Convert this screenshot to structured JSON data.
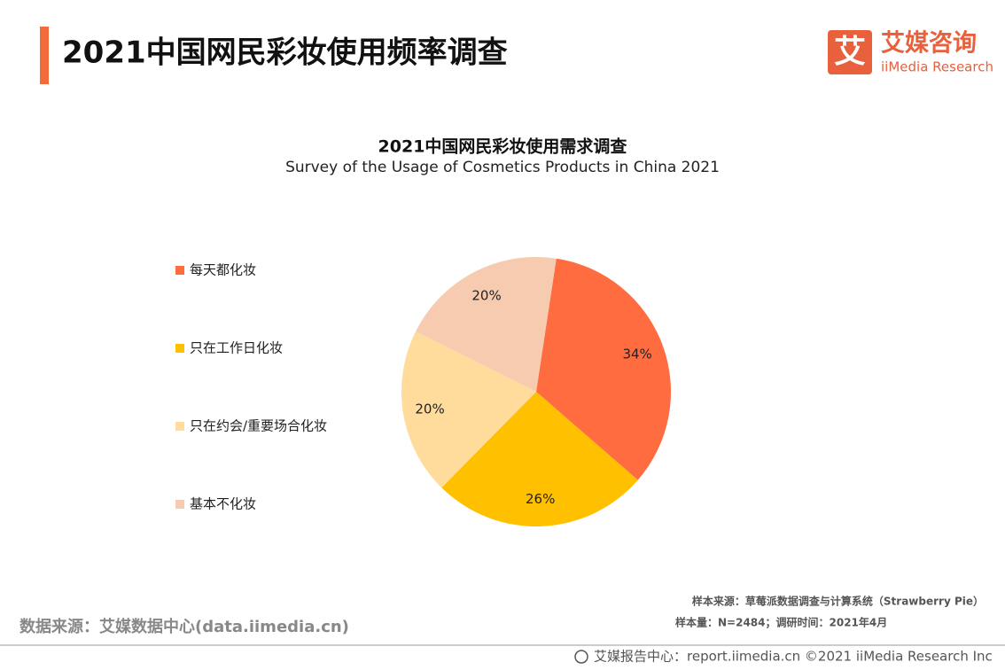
{
  "header": {
    "title": "2021中国网民彩妆使用频率调查"
  },
  "logo": {
    "icon": "艾",
    "name": "艾媒咨询",
    "sub": "iiMedia Research"
  },
  "chart_data": {
    "type": "pie",
    "title": "2021中国网民彩妆使用需求调查",
    "subtitle": "Survey of the Usage of Cosmetics Products in China 2021",
    "categories": [
      "每天都化妆",
      "只在工作日化妆",
      "只在约会/重要场合化妆",
      "基本不化妆"
    ],
    "values": [
      34,
      26,
      20,
      20
    ],
    "value_labels": [
      "34%",
      "26%",
      "20%",
      "20%"
    ],
    "colors": [
      "#ff6c40",
      "#ffc000",
      "#ffdc9b",
      "#f6cbaf"
    ],
    "legend": "left"
  },
  "footer": {
    "sample_source": "样本来源：草莓派数据调查与计算系统（Strawberry Pie）",
    "sample_size": "样本量：N=2484；调研时间：2021年4月",
    "data_source": "数据来源：艾媒数据中心(data.iimedia.cn)",
    "report": "艾媒报告中心：report.iimedia.cn  ©2021  iiMedia Research  Inc"
  }
}
